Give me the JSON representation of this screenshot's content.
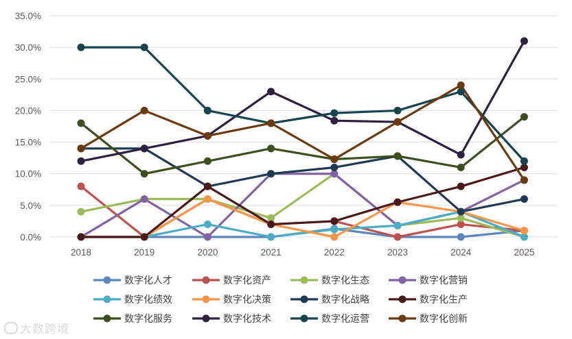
{
  "chart_data": {
    "type": "line",
    "title": "",
    "xlabel": "",
    "ylabel": "",
    "ylim": [
      0,
      0.35
    ],
    "yticks": [
      "0.0%",
      "5.0%",
      "10.0%",
      "15.0%",
      "20.0%",
      "25.0%",
      "30.0%",
      "35.0%"
    ],
    "categories": [
      "2018",
      "2019",
      "2020",
      "2021",
      "2022",
      "2023",
      "2024",
      "2025"
    ],
    "grid": true,
    "legend_position": "bottom",
    "series": [
      {
        "name": "数字化人才",
        "color": "#5b85bd",
        "values": [
          0.0,
          0.0,
          0.0,
          0.0,
          0.013,
          0.0,
          0.0,
          0.01
        ]
      },
      {
        "name": "数字化资产",
        "color": "#c0504d",
        "values": [
          0.08,
          0.0,
          0.06,
          0.02,
          0.025,
          0.0,
          0.02,
          0.01
        ]
      },
      {
        "name": "数字化生态",
        "color": "#9bbb59",
        "values": [
          0.04,
          0.06,
          0.06,
          0.03,
          0.1,
          0.018,
          0.03,
          0.0
        ]
      },
      {
        "name": "数字化营销",
        "color": "#8064a2",
        "values": [
          0.0,
          0.06,
          0.0,
          0.1,
          0.1,
          0.018,
          0.04,
          0.09
        ]
      },
      {
        "name": "数字化绩效",
        "color": "#4bacc6",
        "values": [
          0.0,
          0.0,
          0.02,
          0.0,
          0.012,
          0.018,
          0.04,
          0.0
        ]
      },
      {
        "name": "数字化决策",
        "color": "#f79646",
        "values": [
          0.0,
          0.0,
          0.06,
          0.02,
          0.0,
          0.055,
          0.04,
          0.01
        ]
      },
      {
        "name": "数字化战略",
        "color": "#1f3a54",
        "values": [
          0.14,
          0.14,
          0.08,
          0.1,
          0.11,
          0.128,
          0.04,
          0.06
        ]
      },
      {
        "name": "数字化生产",
        "color": "#4a1a1a",
        "values": [
          0.0,
          0.0,
          0.08,
          0.02,
          0.025,
          0.055,
          0.08,
          0.11
        ]
      },
      {
        "name": "数字化服务",
        "color": "#3d4f1f",
        "values": [
          0.18,
          0.1,
          0.12,
          0.14,
          0.123,
          0.128,
          0.11,
          0.19
        ]
      },
      {
        "name": "数字化技术",
        "color": "#2e2140",
        "values": [
          0.12,
          0.14,
          0.16,
          0.23,
          0.184,
          0.182,
          0.13,
          0.31
        ]
      },
      {
        "name": "数字化运营",
        "color": "#17444f",
        "values": [
          0.3,
          0.3,
          0.2,
          0.18,
          0.196,
          0.2,
          0.23,
          0.12
        ]
      },
      {
        "name": "数字化创新",
        "color": "#6b3a0e",
        "values": [
          0.14,
          0.2,
          0.16,
          0.18,
          0.123,
          0.182,
          0.24,
          0.09
        ]
      }
    ]
  },
  "watermark": {
    "text": "大数跨境"
  }
}
